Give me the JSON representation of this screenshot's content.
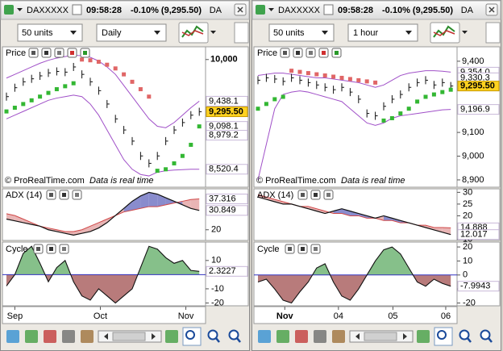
{
  "windows": [
    {
      "title": "DAXXXXX",
      "time": "09:58:28",
      "change": "-0.10% (9,295.50)",
      "title_suffix": "DA",
      "units": "50 units",
      "timeframe": "Daily",
      "xticks": [
        {
          "value": 1,
          "label": "Sep"
        },
        {
          "value": 11.2,
          "label": "Oct"
        },
        {
          "value": 21.4,
          "label": "Nov"
        }
      ],
      "price": {
        "label": "Price",
        "ylim": [
          8300,
          10150
        ],
        "yticks": [
          {
            "value": 10000,
            "label": "10,000"
          }
        ],
        "close": [
          9500,
          9620,
          9700,
          9740,
          9780,
          9820,
          9840,
          9830,
          9900,
          9800,
          9700,
          9580,
          9400,
          9200,
          9050,
          8900,
          8700,
          8600,
          8700,
          8900,
          9050,
          9150,
          9250,
          9295.5
        ],
        "upper": [
          9750,
          9800,
          9850,
          9900,
          9950,
          9990,
          10020,
          10040,
          10060,
          10050,
          10030,
          9980,
          9900,
          9800,
          9650,
          9500,
          9350,
          9200,
          9100,
          9080,
          9150,
          9250,
          9350,
          9438.1
        ],
        "lower": [
          9200,
          9250,
          9300,
          9350,
          9400,
          9450,
          9480,
          9500,
          9520,
          9500,
          9400,
          9250,
          9050,
          8850,
          8650,
          8520,
          8450,
          8430,
          8480,
          8500,
          8510,
          8515,
          8520,
          8520.4
        ],
        "sar": [
          9300,
          9350,
          9400,
          9450,
          9500,
          9550,
          9600,
          9640,
          9680,
          10000,
          9990,
          9970,
          9930,
          9880,
          9800,
          9700,
          9600,
          9500,
          8500,
          8520,
          8600,
          8700,
          8850,
          9098.1
        ],
        "tags": [
          {
            "value": 9438.1,
            "label": "9,438.1",
            "color": "#9a4fc0"
          },
          {
            "value": 9295.5,
            "label": "9,295.50",
            "color": "#000000",
            "background": "#ffd21f"
          },
          {
            "value": 9098.1,
            "label": "9,098.1",
            "color": "#2eaa2e"
          },
          {
            "value": 8979.2,
            "label": "8,979.2",
            "color": "#9a4fc0"
          },
          {
            "value": 8520.4,
            "label": "8,520.4",
            "color": "#9a4fc0"
          }
        ],
        "footer_brand": "© ProRealTime.com",
        "footer_note": "Data is real time"
      },
      "adx": {
        "label": "ADX (14)",
        "ylim": [
          14,
          43
        ],
        "yticks": [
          20
        ],
        "adx": [
          26,
          25,
          24,
          23,
          22,
          20,
          19,
          18,
          17,
          18,
          19,
          21,
          24,
          28,
          32,
          36,
          39,
          41,
          40,
          38,
          36,
          34,
          32,
          30.849
        ],
        "di": [
          29,
          28,
          26,
          24,
          22,
          21,
          20,
          19,
          19,
          20,
          22,
          24,
          26,
          28,
          30,
          31,
          32,
          33,
          33,
          34,
          35,
          36,
          37,
          37.316
        ],
        "tags": [
          {
            "value": 37.316,
            "label": "37.316",
            "color": "#d04040"
          },
          {
            "value": 30.849,
            "label": "30.849",
            "color": "#000000"
          }
        ]
      },
      "cycle": {
        "label": "Cycle",
        "ylim": [
          -22,
          23
        ],
        "yticks": [
          10,
          -10,
          -20
        ],
        "values": [
          -8,
          0,
          15,
          20,
          8,
          -5,
          5,
          10,
          -5,
          -15,
          -18,
          -10,
          -15,
          -20,
          -15,
          -10,
          5,
          20,
          18,
          12,
          8,
          10,
          3,
          2.3227
        ],
        "tags": [
          {
            "value": 2.3227,
            "label": "2.3227",
            "color": "#000000"
          }
        ]
      }
    },
    {
      "title": "DAXXXXX",
      "time": "09:58:28",
      "change": "-0.10% (9,295.50)",
      "title_suffix": "DA",
      "units": "50 units",
      "timeframe": "1 hour",
      "xticks": [
        {
          "value": 3.2,
          "label": "Nov"
        },
        {
          "value": 9.6,
          "label": "04"
        },
        {
          "value": 16.1,
          "label": "05"
        },
        {
          "value": 22.4,
          "label": "06"
        }
      ],
      "price": {
        "label": "Price",
        "ylim": [
          8876,
          9454
        ],
        "yticks": [
          {
            "value": 9400,
            "label": "9,400"
          },
          {
            "value": 9100,
            "label": "9,100"
          },
          {
            "value": 9000,
            "label": "9,000"
          },
          {
            "value": 8900,
            "label": "8,900"
          }
        ],
        "close": [
          9320,
          9330,
          9325,
          9315,
          9330,
          9320,
          9310,
          9300,
          9290,
          9280,
          9290,
          9270,
          9240,
          9180,
          9170,
          9210,
          9240,
          9260,
          9290,
          9310,
          9320,
          9300,
          9310,
          9295.5
        ],
        "upper": [
          9340,
          9345,
          9350,
          9350,
          9345,
          9340,
          9335,
          9330,
          9330,
          9325,
          9320,
          9315,
          9310,
          9300,
          9290,
          9300,
          9320,
          9340,
          9350,
          9355,
          9360,
          9360,
          9358,
          9354.0
        ],
        "lower": [
          8900,
          9050,
          9200,
          9260,
          9270,
          9275,
          9270,
          9260,
          9250,
          9240,
          9230,
          9200,
          9170,
          9140,
          9130,
          9140,
          9160,
          9170,
          9175,
          9180,
          9185,
          9190,
          9195,
          9196.9
        ],
        "sar": [
          9200,
          9220,
          9240,
          9250,
          9360,
          9355,
          9350,
          9345,
          9340,
          9335,
          9330,
          9325,
          9320,
          9315,
          9310,
          9150,
          9160,
          9180,
          9200,
          9230,
          9250,
          9260,
          9270,
          9280
        ],
        "tags": [
          {
            "value": 9354.0,
            "label": "9,354.0",
            "color": "#9a4fc0"
          },
          {
            "value": 9330.3,
            "label": "9,330.3",
            "color": "#9a4fc0"
          },
          {
            "value": 9295.5,
            "label": "9,295.50",
            "color": "#000000",
            "background": "#ffd21f"
          },
          {
            "value": 9196.9,
            "label": "9,196.9",
            "color": "#9a4fc0"
          }
        ],
        "footer_brand": "© ProRealTime.com",
        "footer_note": "Data is real time"
      },
      "adx": {
        "label": "ADX (14)",
        "ylim": [
          9.5,
          31.5
        ],
        "yticks": [
          30,
          25,
          20,
          10
        ],
        "adx": [
          28,
          27,
          26,
          25,
          25,
          24,
          23,
          22,
          21,
          22,
          23,
          22,
          21,
          20,
          19,
          20,
          19,
          18,
          17,
          16,
          15,
          14,
          13,
          12.017
        ],
        "di": [
          29,
          28,
          27,
          26,
          25,
          24,
          24,
          23,
          22,
          21,
          21,
          20,
          20,
          19,
          19,
          18,
          18,
          17,
          17,
          16,
          16,
          15,
          15,
          14.888
        ],
        "tags": [
          {
            "value": 14.888,
            "label": "14.888",
            "color": "#d04040"
          },
          {
            "value": 12.017,
            "label": "12.017",
            "color": "#000000"
          }
        ]
      },
      "cycle": {
        "label": "Cycle",
        "ylim": [
          -22,
          23.5
        ],
        "yticks": [
          20,
          10,
          0,
          -10,
          -20
        ],
        "values": [
          -5,
          -3,
          -10,
          -18,
          -20,
          -12,
          -5,
          5,
          8,
          -5,
          -15,
          -18,
          -10,
          0,
          10,
          18,
          20,
          15,
          5,
          -5,
          -8,
          -3,
          -6,
          -7.9943
        ],
        "tags": [
          {
            "value": -7.9943,
            "label": "-7.9943",
            "color": "#000000"
          }
        ]
      }
    }
  ]
}
